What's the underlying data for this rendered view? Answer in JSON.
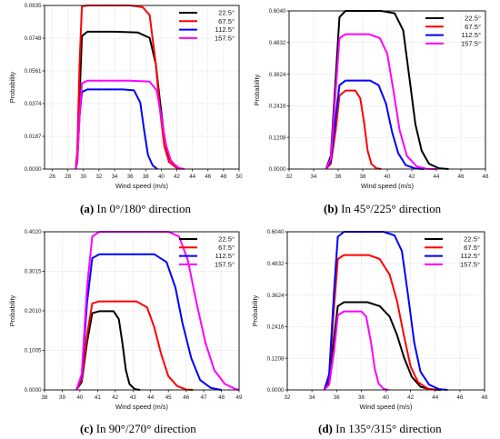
{
  "chart_data": [
    {
      "type": "line",
      "caption_letter": "(a)",
      "caption_text": " In 0°/180° direction",
      "xlabel": "Wind speed (m/s)",
      "ylabel": "Probability",
      "xlim": [
        25,
        50
      ],
      "ylim": [
        0,
        0.0935
      ],
      "xticks": [
        26,
        28,
        30,
        32,
        34,
        36,
        38,
        40,
        42,
        44,
        46,
        48,
        50
      ],
      "yticks": [
        "0.0000",
        "0.0187",
        "0.0374",
        "0.0561",
        "0.0748",
        "0.0935"
      ],
      "grid": true,
      "legend": "top-right",
      "series": [
        {
          "name": "22.5°",
          "color": "#000000",
          "points": [
            [
              29.0,
              0
            ],
            [
              29.2,
              0.005
            ],
            [
              29.5,
              0.04
            ],
            [
              29.8,
              0.076
            ],
            [
              30.5,
              0.0785
            ],
            [
              34,
              0.0785
            ],
            [
              37,
              0.078
            ],
            [
              38.5,
              0.075
            ],
            [
              39.3,
              0.06
            ],
            [
              39.8,
              0.04
            ],
            [
              40.4,
              0.018
            ],
            [
              41.0,
              0.006
            ],
            [
              42.0,
              0.001
            ],
            [
              42.5,
              0
            ]
          ]
        },
        {
          "name": "67.5°",
          "color": "#ff0000",
          "points": [
            [
              29.0,
              0
            ],
            [
              29.2,
              0.01
            ],
            [
              29.5,
              0.06
            ],
            [
              29.8,
              0.093
            ],
            [
              30.5,
              0.0935
            ],
            [
              36,
              0.0935
            ],
            [
              37.6,
              0.0925
            ],
            [
              38.5,
              0.088
            ],
            [
              39.3,
              0.06
            ],
            [
              39.8,
              0.035
            ],
            [
              40.4,
              0.013
            ],
            [
              41.0,
              0.004
            ],
            [
              42.0,
              0.0005
            ],
            [
              42.5,
              0
            ]
          ]
        },
        {
          "name": "112.5°",
          "color": "#0000ff",
          "points": [
            [
              29.0,
              0
            ],
            [
              29.2,
              0.004
            ],
            [
              29.5,
              0.03
            ],
            [
              29.8,
              0.044
            ],
            [
              30.5,
              0.0455
            ],
            [
              35,
              0.0455
            ],
            [
              36.5,
              0.045
            ],
            [
              37.3,
              0.038
            ],
            [
              37.8,
              0.022
            ],
            [
              38.3,
              0.008
            ],
            [
              38.9,
              0.002
            ],
            [
              39.5,
              0
            ]
          ]
        },
        {
          "name": "157.5°",
          "color": "#ff00ff",
          "points": [
            [
              29.0,
              0
            ],
            [
              29.2,
              0.004
            ],
            [
              29.5,
              0.03
            ],
            [
              29.8,
              0.049
            ],
            [
              30.5,
              0.0505
            ],
            [
              36,
              0.0505
            ],
            [
              38.5,
              0.05
            ],
            [
              39.4,
              0.045
            ],
            [
              40.0,
              0.03
            ],
            [
              40.6,
              0.014
            ],
            [
              41.3,
              0.004
            ],
            [
              42.3,
              0.0005
            ],
            [
              43,
              0
            ]
          ]
        }
      ]
    },
    {
      "type": "line",
      "caption_letter": "(b)",
      "caption_text": " In 45°/225° direction",
      "xlabel": "Wind speed (m/s)",
      "ylabel": "Probability",
      "xlim": [
        32,
        48
      ],
      "ylim": [
        0,
        0.604
      ],
      "xticks": [
        32,
        34,
        36,
        38,
        40,
        42,
        44,
        46,
        48
      ],
      "yticks": [
        "0.0000",
        "0.1208",
        "0.2416",
        "0.3624",
        "0.4832",
        "0.6040"
      ],
      "grid": true,
      "legend": "top-right",
      "series": [
        {
          "name": "22.5°",
          "color": "#000000",
          "points": [
            [
              35.0,
              0
            ],
            [
              35.4,
              0.05
            ],
            [
              35.8,
              0.35
            ],
            [
              36.1,
              0.58
            ],
            [
              36.6,
              0.604
            ],
            [
              39.5,
              0.604
            ],
            [
              40.6,
              0.595
            ],
            [
              41.3,
              0.53
            ],
            [
              41.8,
              0.35
            ],
            [
              42.3,
              0.17
            ],
            [
              42.8,
              0.07
            ],
            [
              43.4,
              0.02
            ],
            [
              44.2,
              0.003
            ],
            [
              45,
              0
            ]
          ]
        },
        {
          "name": "67.5°",
          "color": "#ff0000",
          "points": [
            [
              35.0,
              0
            ],
            [
              35.4,
              0.02
            ],
            [
              35.8,
              0.15
            ],
            [
              36.1,
              0.28
            ],
            [
              36.6,
              0.3
            ],
            [
              37.4,
              0.3
            ],
            [
              37.8,
              0.27
            ],
            [
              38.1,
              0.18
            ],
            [
              38.4,
              0.07
            ],
            [
              38.7,
              0.02
            ],
            [
              39.1,
              0.003
            ],
            [
              39.5,
              0
            ]
          ]
        },
        {
          "name": "112.5°",
          "color": "#0000ff",
          "points": [
            [
              35.0,
              0
            ],
            [
              35.4,
              0.03
            ],
            [
              35.8,
              0.2
            ],
            [
              36.1,
              0.32
            ],
            [
              36.6,
              0.338
            ],
            [
              38.6,
              0.338
            ],
            [
              39.3,
              0.32
            ],
            [
              39.9,
              0.25
            ],
            [
              40.4,
              0.14
            ],
            [
              40.9,
              0.06
            ],
            [
              41.5,
              0.015
            ],
            [
              42.3,
              0.002
            ],
            [
              43,
              0
            ]
          ]
        },
        {
          "name": "157.5°",
          "color": "#ff00ff",
          "points": [
            [
              35.0,
              0
            ],
            [
              35.4,
              0.04
            ],
            [
              35.8,
              0.3
            ],
            [
              36.1,
              0.5
            ],
            [
              36.6,
              0.515
            ],
            [
              38.5,
              0.515
            ],
            [
              39.4,
              0.5
            ],
            [
              40.0,
              0.44
            ],
            [
              40.5,
              0.3
            ],
            [
              41.0,
              0.15
            ],
            [
              41.6,
              0.05
            ],
            [
              42.4,
              0.01
            ],
            [
              43.2,
              0.001
            ],
            [
              44,
              0
            ]
          ]
        }
      ]
    },
    {
      "type": "line",
      "caption_letter": "(c)",
      "caption_text": " In 90°/270° direction",
      "xlabel": "Wind speed (m/s)",
      "ylabel": "Probability",
      "xlim": [
        38,
        49
      ],
      "ylim": [
        0,
        0.402
      ],
      "xticks": [
        38,
        39,
        40,
        41,
        42,
        43,
        44,
        45,
        46,
        47,
        48,
        49
      ],
      "yticks": [
        "0.0000",
        "0.1005",
        "0.2010",
        "0.3015",
        "0.4020"
      ],
      "grid": true,
      "legend": "top-right",
      "series": [
        {
          "name": "22.5°",
          "color": "#000000",
          "points": [
            [
              39.8,
              0
            ],
            [
              40.1,
              0.02
            ],
            [
              40.4,
              0.12
            ],
            [
              40.7,
              0.195
            ],
            [
              41.1,
              0.2
            ],
            [
              41.9,
              0.2
            ],
            [
              42.2,
              0.18
            ],
            [
              42.4,
              0.12
            ],
            [
              42.6,
              0.05
            ],
            [
              42.8,
              0.015
            ],
            [
              43.1,
              0.002
            ],
            [
              43.4,
              0
            ]
          ]
        },
        {
          "name": "67.5°",
          "color": "#ff0000",
          "points": [
            [
              39.8,
              0
            ],
            [
              40.1,
              0.025
            ],
            [
              40.4,
              0.14
            ],
            [
              40.7,
              0.22
            ],
            [
              41.1,
              0.225
            ],
            [
              43.2,
              0.225
            ],
            [
              43.8,
              0.21
            ],
            [
              44.2,
              0.16
            ],
            [
              44.6,
              0.09
            ],
            [
              45.0,
              0.035
            ],
            [
              45.5,
              0.01
            ],
            [
              46.0,
              0.001
            ],
            [
              46.4,
              0
            ]
          ]
        },
        {
          "name": "112.5°",
          "color": "#0000ff",
          "points": [
            [
              39.8,
              0
            ],
            [
              40.1,
              0.035
            ],
            [
              40.4,
              0.22
            ],
            [
              40.7,
              0.335
            ],
            [
              41.1,
              0.345
            ],
            [
              44.2,
              0.345
            ],
            [
              44.9,
              0.325
            ],
            [
              45.4,
              0.26
            ],
            [
              45.8,
              0.17
            ],
            [
              46.3,
              0.08
            ],
            [
              46.8,
              0.025
            ],
            [
              47.4,
              0.005
            ],
            [
              48.0,
              0
            ]
          ]
        },
        {
          "name": "157.5°",
          "color": "#ff00ff",
          "points": [
            [
              39.8,
              0
            ],
            [
              40.1,
              0.04
            ],
            [
              40.4,
              0.26
            ],
            [
              40.7,
              0.39
            ],
            [
              41.1,
              0.402
            ],
            [
              45.0,
              0.402
            ],
            [
              45.6,
              0.39
            ],
            [
              46.1,
              0.33
            ],
            [
              46.6,
              0.22
            ],
            [
              47.1,
              0.12
            ],
            [
              47.6,
              0.05
            ],
            [
              48.2,
              0.015
            ],
            [
              48.8,
              0.002
            ],
            [
              49,
              0
            ]
          ]
        }
      ]
    },
    {
      "type": "line",
      "caption_letter": "(d)",
      "caption_text": " In 135°/315° direction",
      "xlabel": "Wind speed (m/s)",
      "ylabel": "Probability",
      "xlim": [
        32,
        48
      ],
      "ylim": [
        0,
        0.604
      ],
      "xticks": [
        32,
        34,
        36,
        38,
        40,
        42,
        44,
        46,
        48
      ],
      "yticks": [
        "0.0000",
        "0.1208",
        "0.2416",
        "0.3624",
        "0.4832",
        "0.6040"
      ],
      "grid": true,
      "legend": "top-right",
      "series": [
        {
          "name": "22.5°",
          "color": "#000000",
          "points": [
            [
              35.0,
              0
            ],
            [
              35.4,
              0.03
            ],
            [
              35.8,
              0.2
            ],
            [
              36.1,
              0.32
            ],
            [
              36.6,
              0.335
            ],
            [
              38.5,
              0.335
            ],
            [
              39.5,
              0.32
            ],
            [
              40.3,
              0.28
            ],
            [
              40.9,
              0.21
            ],
            [
              41.5,
              0.12
            ],
            [
              42.1,
              0.05
            ],
            [
              42.8,
              0.012
            ],
            [
              43.6,
              0.002
            ],
            [
              44.5,
              0
            ]
          ]
        },
        {
          "name": "67.5°",
          "color": "#ff0000",
          "points": [
            [
              35.0,
              0
            ],
            [
              35.4,
              0.05
            ],
            [
              35.8,
              0.32
            ],
            [
              36.1,
              0.5
            ],
            [
              36.6,
              0.515
            ],
            [
              38.6,
              0.515
            ],
            [
              39.5,
              0.5
            ],
            [
              40.3,
              0.44
            ],
            [
              40.9,
              0.34
            ],
            [
              41.5,
              0.2
            ],
            [
              42.0,
              0.09
            ],
            [
              42.6,
              0.03
            ],
            [
              43.4,
              0.005
            ],
            [
              44.2,
              0
            ]
          ]
        },
        {
          "name": "112.5°",
          "color": "#0000ff",
          "points": [
            [
              35.0,
              0
            ],
            [
              35.4,
              0.06
            ],
            [
              35.8,
              0.38
            ],
            [
              36.1,
              0.585
            ],
            [
              36.6,
              0.604
            ],
            [
              39.8,
              0.604
            ],
            [
              40.7,
              0.59
            ],
            [
              41.3,
              0.53
            ],
            [
              41.8,
              0.36
            ],
            [
              42.3,
              0.18
            ],
            [
              42.8,
              0.07
            ],
            [
              43.5,
              0.02
            ],
            [
              44.3,
              0.003
            ],
            [
              45,
              0
            ]
          ]
        },
        {
          "name": "157.5°",
          "color": "#ff00ff",
          "points": [
            [
              35.0,
              0
            ],
            [
              35.4,
              0.02
            ],
            [
              35.8,
              0.15
            ],
            [
              36.1,
              0.285
            ],
            [
              36.6,
              0.3
            ],
            [
              38.0,
              0.3
            ],
            [
              38.4,
              0.28
            ],
            [
              38.8,
              0.18
            ],
            [
              39.1,
              0.08
            ],
            [
              39.4,
              0.025
            ],
            [
              39.8,
              0.004
            ],
            [
              40.2,
              0
            ]
          ]
        }
      ]
    }
  ]
}
